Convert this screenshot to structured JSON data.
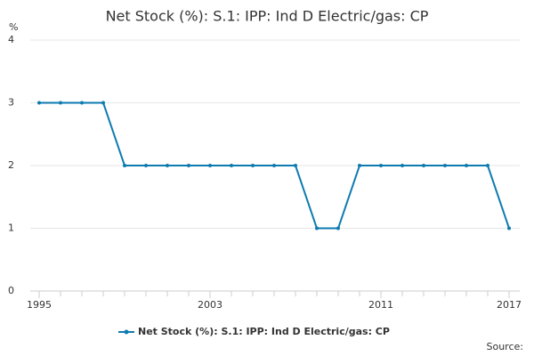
{
  "chart_data": {
    "type": "line",
    "title": "Net Stock (%): S.1: IPP: Ind D Electric/gas: CP",
    "y_label": "%",
    "source": "Source:",
    "x": [
      1995,
      1996,
      1997,
      1998,
      1999,
      2000,
      2001,
      2002,
      2003,
      2004,
      2005,
      2006,
      2007,
      2008,
      2009,
      2010,
      2011,
      2012,
      2013,
      2014,
      2015,
      2016,
      2017
    ],
    "series": [
      {
        "name": "Net Stock (%): S.1: IPP: Ind D Electric/gas: CP",
        "color": "#0e7bb0",
        "values": [
          3,
          3,
          3,
          3,
          2,
          2,
          2,
          2,
          2,
          2,
          2,
          2,
          2,
          1,
          1,
          2,
          2,
          2,
          2,
          2,
          2,
          2,
          1
        ]
      }
    ],
    "xlim": [
      1995,
      2017
    ],
    "xticks": [
      1995,
      2003,
      2011,
      2017
    ],
    "ylim": [
      0,
      4
    ],
    "yticks": [
      0,
      1,
      2,
      3,
      4
    ],
    "grid": true
  }
}
